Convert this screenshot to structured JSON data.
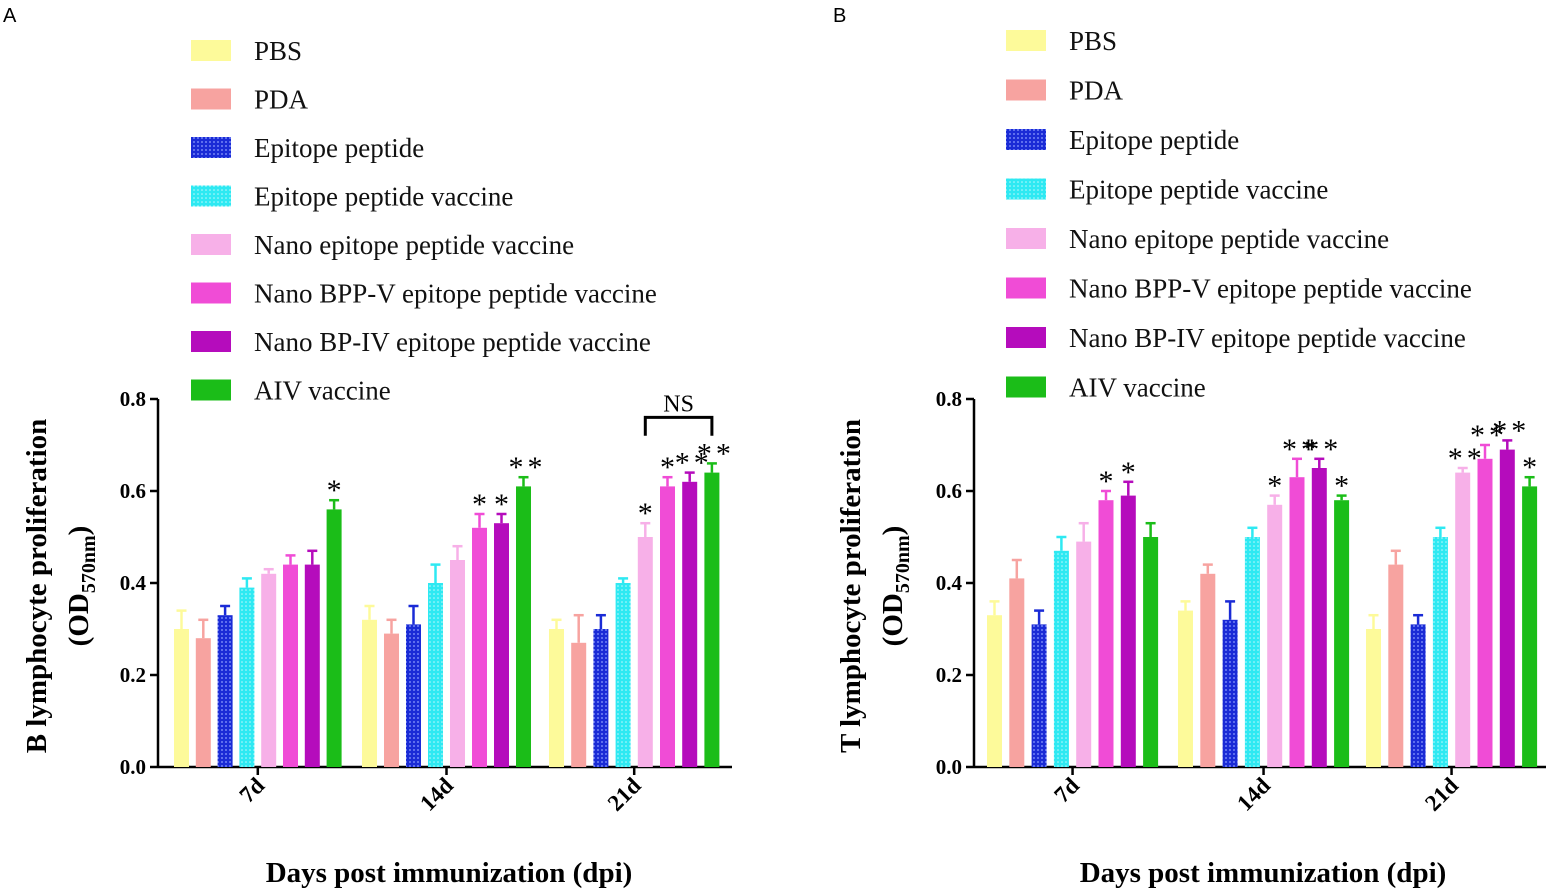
{
  "colors": {
    "PBS": "#fdfa9a",
    "PDA": "#f7a3a0",
    "Epitope peptide": "#1a2bd6",
    "Epitope peptide vaccine": "#2ee9f2",
    "Nano epitope peptide vaccine": "#f7b0e8",
    "Nano BPP-V epitope peptide vaccine": "#f04cd6",
    "Nano BP-IV epitope peptide vaccine": "#b50cbc",
    "AIV vaccine": "#1bbd18"
  },
  "legend_entries": [
    {
      "label": "PBS",
      "series": "PBS"
    },
    {
      "label": "PDA",
      "series": "PDA"
    },
    {
      "label": "Epitope peptide",
      "series": "Epitope peptide"
    },
    {
      "label": "Epitope peptide vaccine",
      "series": "Epitope peptide vaccine"
    },
    {
      "label": "Nano epitope peptide vaccine",
      "series": "Nano epitope peptide vaccine"
    },
    {
      "label": "Nano BPP-V epitope peptide vaccine",
      "series": "Nano BPP-V epitope peptide vaccine"
    },
    {
      "label": "Nano BP-IV epitope peptide vaccine",
      "series": "Nano BP-IV epitope peptide vaccine"
    },
    {
      "label": "AIV vaccine",
      "series": "AIV vaccine"
    }
  ],
  "chart_data": [
    {
      "panel": "A",
      "type": "bar",
      "ylabel_main": "B lymphocyte proliferation",
      "ylabel_unit_prefix": "(OD",
      "ylabel_unit_sub": "570nm",
      "ylabel_unit_suffix": ")",
      "xlabel": "Days post immunization (dpi)",
      "categories": [
        "7d",
        "14d",
        "21d"
      ],
      "ylim": [
        0,
        0.8
      ],
      "yticks": [
        "0.0",
        "0.2",
        "0.4",
        "0.6",
        "0.8"
      ],
      "series": [
        {
          "name": "PBS",
          "values": [
            0.3,
            0.32,
            0.3
          ],
          "errors": [
            0.04,
            0.03,
            0.02
          ],
          "stars": [
            "",
            "",
            ""
          ]
        },
        {
          "name": "PDA",
          "values": [
            0.28,
            0.29,
            0.27
          ],
          "errors": [
            0.04,
            0.03,
            0.06
          ],
          "stars": [
            "",
            "",
            ""
          ]
        },
        {
          "name": "Epitope peptide",
          "values": [
            0.33,
            0.31,
            0.3
          ],
          "errors": [
            0.02,
            0.04,
            0.03
          ],
          "stars": [
            "",
            "",
            ""
          ]
        },
        {
          "name": "Epitope peptide vaccine",
          "values": [
            0.39,
            0.4,
            0.4
          ],
          "errors": [
            0.02,
            0.04,
            0.01
          ],
          "stars": [
            "",
            "",
            ""
          ]
        },
        {
          "name": "Nano epitope peptide vaccine",
          "values": [
            0.42,
            0.45,
            0.5
          ],
          "errors": [
            0.01,
            0.03,
            0.03
          ],
          "stars": [
            "",
            "",
            "*"
          ]
        },
        {
          "name": "Nano BPP-V epitope peptide vaccine",
          "values": [
            0.44,
            0.52,
            0.61
          ],
          "errors": [
            0.02,
            0.03,
            0.02
          ],
          "stars": [
            "",
            "*",
            "*"
          ]
        },
        {
          "name": "Nano BP-IV epitope peptide vaccine",
          "values": [
            0.44,
            0.53,
            0.62
          ],
          "errors": [
            0.03,
            0.02,
            0.02
          ],
          "stars": [
            "",
            "*",
            "**"
          ]
        },
        {
          "name": "AIV vaccine",
          "values": [
            0.56,
            0.61,
            0.64
          ],
          "errors": [
            0.02,
            0.02,
            0.02
          ],
          "stars": [
            "*",
            "**",
            "**"
          ]
        }
      ],
      "annotation": {
        "text": "NS",
        "category": "21d",
        "from_series": "Nano epitope peptide vaccine",
        "to_series": "AIV vaccine"
      }
    },
    {
      "panel": "B",
      "type": "bar",
      "ylabel_main": "T lymphocyte proliferation",
      "ylabel_unit_prefix": "(OD",
      "ylabel_unit_sub": "570nm",
      "ylabel_unit_suffix": ")",
      "xlabel": "Days post immunization (dpi)",
      "categories": [
        "7d",
        "14d",
        "21d"
      ],
      "ylim": [
        0,
        0.8
      ],
      "yticks": [
        "0.0",
        "0.2",
        "0.4",
        "0.6",
        "0.8"
      ],
      "series": [
        {
          "name": "PBS",
          "values": [
            0.33,
            0.34,
            0.3
          ],
          "errors": [
            0.03,
            0.02,
            0.03
          ],
          "stars": [
            "",
            "",
            ""
          ]
        },
        {
          "name": "PDA",
          "values": [
            0.41,
            0.42,
            0.44
          ],
          "errors": [
            0.04,
            0.02,
            0.03
          ],
          "stars": [
            "",
            "",
            ""
          ]
        },
        {
          "name": "Epitope peptide",
          "values": [
            0.31,
            0.32,
            0.31
          ],
          "errors": [
            0.03,
            0.04,
            0.02
          ],
          "stars": [
            "",
            "",
            ""
          ]
        },
        {
          "name": "Epitope peptide vaccine",
          "values": [
            0.47,
            0.5,
            0.5
          ],
          "errors": [
            0.03,
            0.02,
            0.02
          ],
          "stars": [
            "",
            "",
            ""
          ]
        },
        {
          "name": "Nano epitope peptide vaccine",
          "values": [
            0.49,
            0.57,
            0.64
          ],
          "errors": [
            0.04,
            0.02,
            0.01
          ],
          "stars": [
            "",
            "*",
            "**"
          ]
        },
        {
          "name": "Nano BPP-V epitope peptide vaccine",
          "values": [
            0.58,
            0.63,
            0.67
          ],
          "errors": [
            0.02,
            0.04,
            0.03
          ],
          "stars": [
            "*",
            "**",
            "**"
          ]
        },
        {
          "name": "Nano BP-IV epitope peptide vaccine",
          "values": [
            0.59,
            0.65,
            0.69
          ],
          "errors": [
            0.03,
            0.02,
            0.02
          ],
          "stars": [
            "*",
            "**",
            "**"
          ]
        },
        {
          "name": "AIV vaccine",
          "values": [
            0.5,
            0.58,
            0.61
          ],
          "errors": [
            0.03,
            0.01,
            0.02
          ],
          "stars": [
            "",
            "*",
            "*"
          ]
        }
      ]
    }
  ]
}
